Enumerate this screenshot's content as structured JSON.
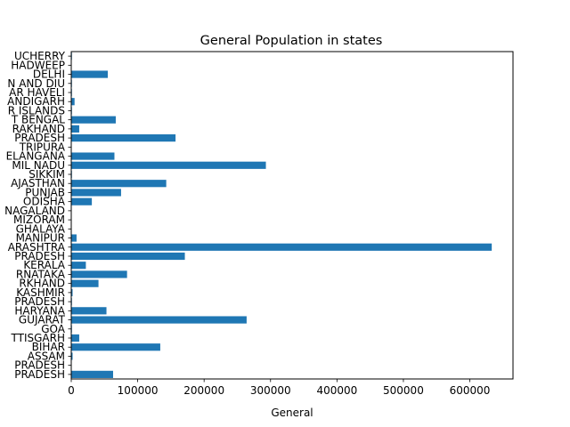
{
  "chart_data": {
    "type": "bar",
    "orientation": "horizontal",
    "title": "General Population in states",
    "xlabel": "General",
    "ylabel": "",
    "xlim": [
      0,
      665000
    ],
    "xticks": [
      0,
      100000,
      200000,
      300000,
      400000,
      500000,
      600000
    ],
    "xtick_labels": [
      "0",
      "100000",
      "200000",
      "300000",
      "400000",
      "500000",
      "600000"
    ],
    "grid": false,
    "bar_color": "#1f77b4",
    "categories": [
      "PRADESH",
      "PRADESH",
      "ASSAM",
      "BIHAR",
      "TTISGARH",
      "GOA",
      "GUJARAT",
      "HARYANA",
      "PRADESH",
      "KASHMIR",
      "RKHAND",
      "RNATAKA",
      "KERALA",
      "PRADESH",
      "ARASHTRA",
      "MANIPUR",
      "GHALAYA",
      "MIZORAM",
      "NAGALAND",
      "ODISHA",
      "PUNJAB",
      "AJASTHAN",
      "SIKKIM",
      "MIL NADU",
      "ELANGANA",
      "TRIPURA",
      "PRADESH",
      "RAKHAND",
      "T BENGAL",
      "R ISLANDS",
      "ANDIGARH",
      "AR HAVELI",
      "N AND DIU",
      "DELHI",
      "HADWEEP",
      "UCHERRY"
    ],
    "values": [
      63000,
      0,
      2000,
      134000,
      12000,
      1000,
      264000,
      53000,
      1000,
      2000,
      41000,
      84000,
      22000,
      171000,
      633000,
      8000,
      0,
      0,
      0,
      31000,
      75000,
      143000,
      1000,
      293000,
      65000,
      0,
      157000,
      12000,
      67000,
      1000,
      5000,
      1000,
      1000,
      55000,
      0,
      1000
    ]
  }
}
